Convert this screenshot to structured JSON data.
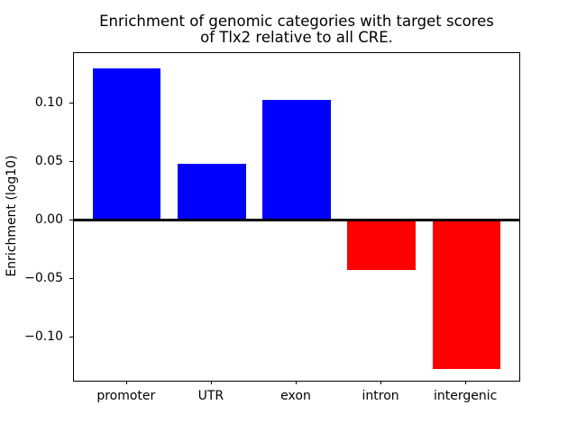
{
  "chart_data": {
    "type": "bar",
    "title": "Enrichment of genomic categories with target scores\nof Tlx2 relative to all CRE.",
    "ylabel": "Enrichment (log10)",
    "xlabel": "",
    "categories": [
      "promoter",
      "UTR",
      "exon",
      "intron",
      "intergenic"
    ],
    "values": [
      0.13,
      0.048,
      0.103,
      -0.043,
      -0.127
    ],
    "colors": {
      "positive": "#0000ff",
      "negative": "#ff0000"
    },
    "baseline": 0,
    "ylim": [
      -0.1373,
      0.1427
    ],
    "yticks": [
      {
        "v": 0.1,
        "label": "0.10"
      },
      {
        "v": 0.05,
        "label": "0.05"
      },
      {
        "v": 0.0,
        "label": "0.00"
      },
      {
        "v": -0.05,
        "label": "−0.05"
      },
      {
        "v": -0.1,
        "label": "−0.10"
      }
    ],
    "grid": false,
    "legend": "none"
  }
}
